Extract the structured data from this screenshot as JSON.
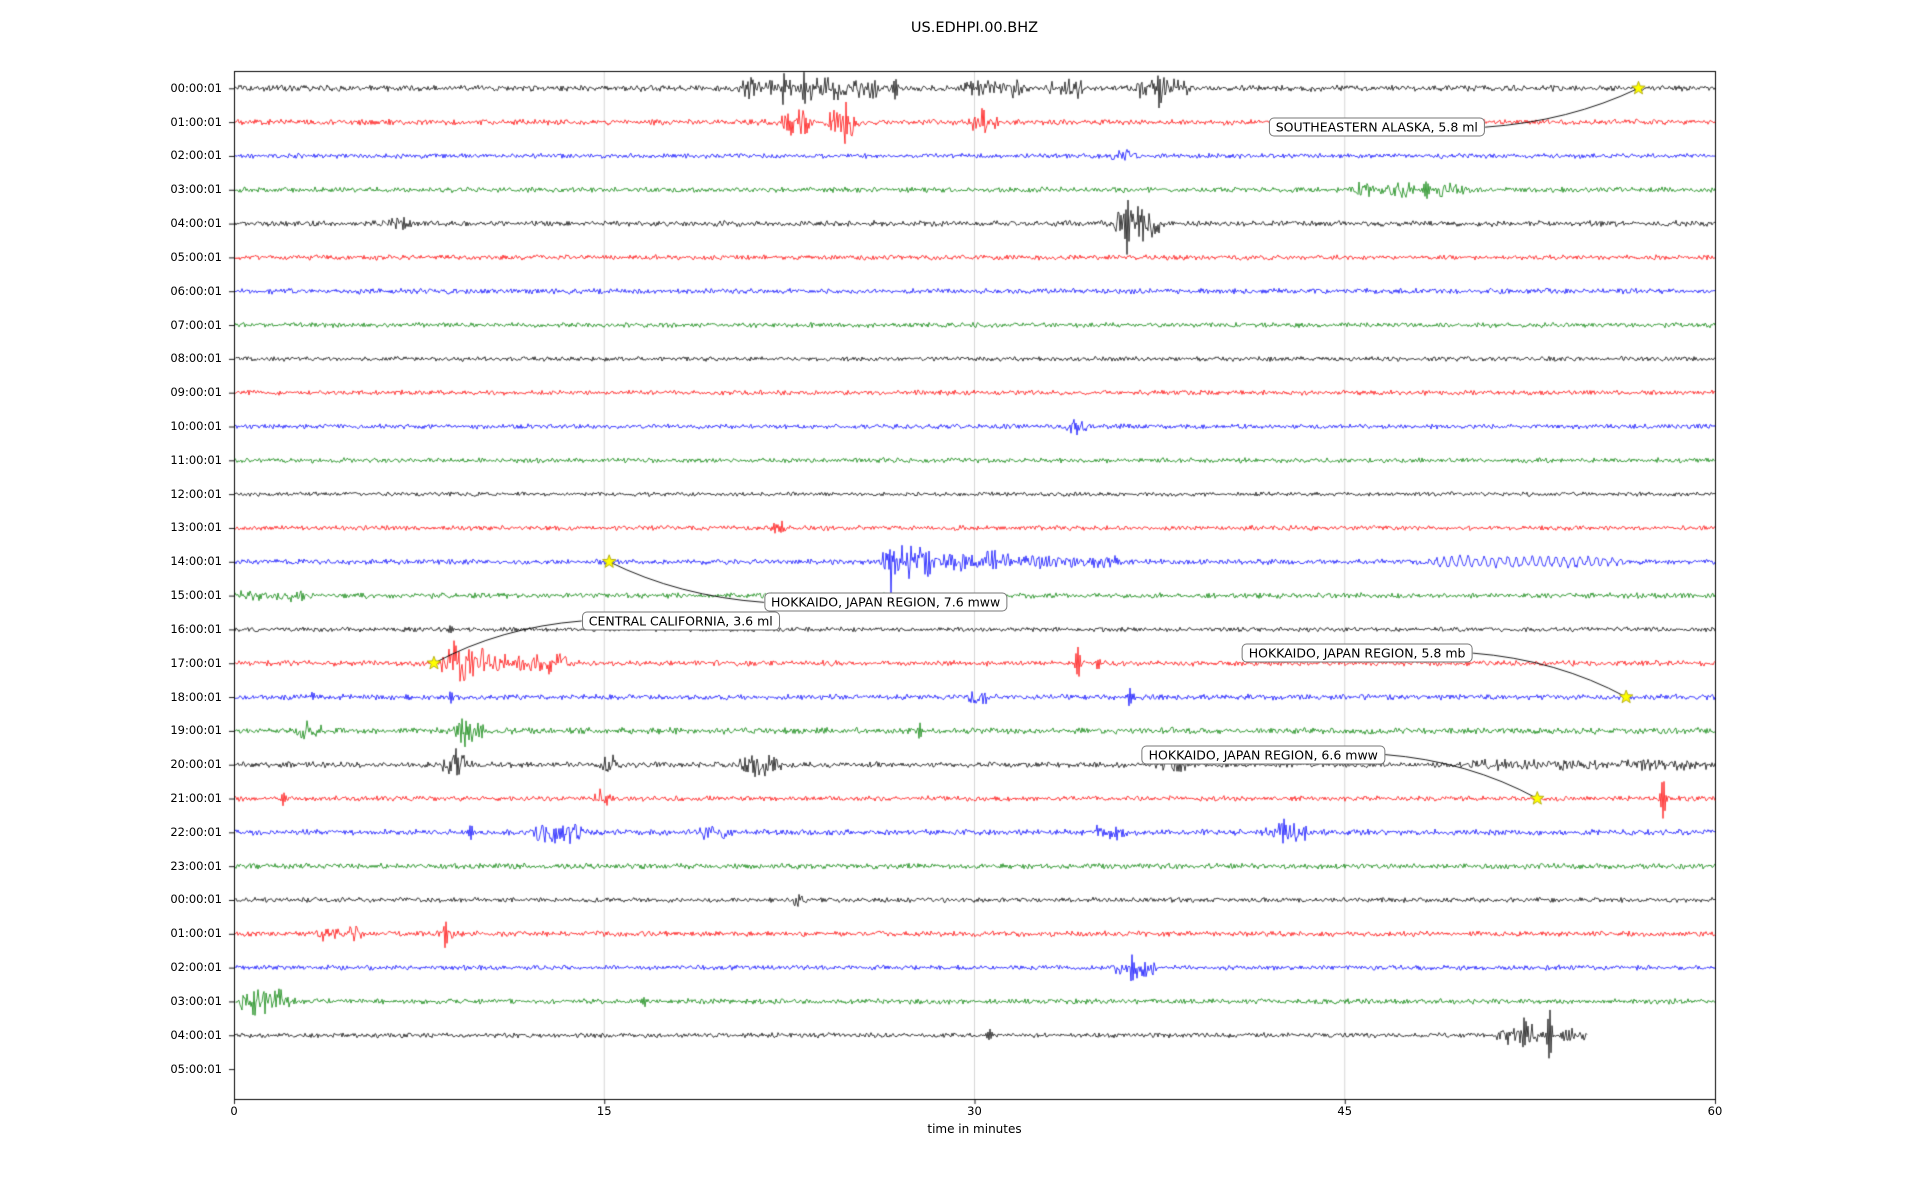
{
  "chart_data": {
    "type": "line",
    "title": "US.EDHPI.00.BHZ",
    "xlabel": "time in minutes",
    "x_range": [
      0,
      60
    ],
    "x_ticks": [
      0,
      15,
      30,
      45,
      60
    ],
    "grid_minutes": [
      15,
      30,
      45
    ],
    "trace_colors_cycle": [
      "#000000",
      "#ff0000",
      "#0000ff",
      "#008000"
    ],
    "marker_color": "#ffff00",
    "rows": [
      {
        "label": "00:00:01",
        "color": "#000000",
        "noise": 2.4,
        "features": [
          {
            "type": "burst",
            "start": 20.5,
            "end": 26.2,
            "amp": 6
          },
          {
            "type": "spike",
            "minute": 22.3,
            "amp": 12
          },
          {
            "type": "spike",
            "minute": 23.1,
            "amp": 10
          },
          {
            "type": "spike",
            "minute": 26.8,
            "amp": 11
          },
          {
            "type": "burst",
            "start": 29.5,
            "end": 32.0,
            "amp": 5
          },
          {
            "type": "burst",
            "start": 33.0,
            "end": 34.5,
            "amp": 5
          },
          {
            "type": "burst",
            "start": 36.5,
            "end": 38.8,
            "amp": 6
          },
          {
            "type": "spike",
            "minute": 37.5,
            "amp": 10
          }
        ]
      },
      {
        "label": "01:00:01",
        "color": "#ff0000",
        "noise": 2.2,
        "features": [
          {
            "type": "burst",
            "start": 22.0,
            "end": 23.5,
            "amp": 12
          },
          {
            "type": "spike",
            "minute": 22.6,
            "amp": 17
          },
          {
            "type": "spike",
            "minute": 23.2,
            "amp": 16
          },
          {
            "type": "burst",
            "start": 24.0,
            "end": 25.3,
            "amp": 10
          },
          {
            "type": "spike",
            "minute": 24.8,
            "amp": 15
          },
          {
            "type": "burst",
            "start": 29.8,
            "end": 31.0,
            "amp": 6
          },
          {
            "type": "spike",
            "minute": 30.3,
            "amp": 9
          }
        ]
      },
      {
        "label": "02:00:01",
        "color": "#0000ff",
        "noise": 1.9,
        "features": [
          {
            "type": "burst",
            "start": 35.5,
            "end": 36.5,
            "amp": 3
          }
        ]
      },
      {
        "label": "03:00:01",
        "color": "#008000",
        "noise": 2.1,
        "features": [
          {
            "type": "burst",
            "start": 45.3,
            "end": 47.8,
            "amp": 5
          },
          {
            "type": "spike",
            "minute": 48.3,
            "amp": 9
          },
          {
            "type": "burst",
            "start": 48.6,
            "end": 50.0,
            "amp": 4
          }
        ]
      },
      {
        "label": "04:00:01",
        "color": "#000000",
        "noise": 2.2,
        "features": [
          {
            "type": "burst",
            "start": 6.3,
            "end": 7.2,
            "amp": 4
          },
          {
            "type": "burst",
            "start": 35.6,
            "end": 37.6,
            "amp": 10
          },
          {
            "type": "spike",
            "minute": 36.2,
            "amp": 16
          },
          {
            "type": "spike",
            "minute": 36.8,
            "amp": 14
          }
        ]
      },
      {
        "label": "05:00:01",
        "color": "#ff0000",
        "noise": 1.9,
        "features": []
      },
      {
        "label": "06:00:01",
        "color": "#0000ff",
        "noise": 2.1,
        "features": []
      },
      {
        "label": "07:00:01",
        "color": "#008000",
        "noise": 1.9,
        "features": []
      },
      {
        "label": "08:00:01",
        "color": "#000000",
        "noise": 1.8,
        "features": []
      },
      {
        "label": "09:00:01",
        "color": "#ff0000",
        "noise": 1.9,
        "features": []
      },
      {
        "label": "10:00:01",
        "color": "#0000ff",
        "noise": 1.9,
        "features": [
          {
            "type": "burst",
            "start": 33.7,
            "end": 34.6,
            "amp": 5
          },
          {
            "type": "spike",
            "minute": 34.1,
            "amp": 6
          }
        ]
      },
      {
        "label": "11:00:01",
        "color": "#008000",
        "noise": 1.9,
        "features": []
      },
      {
        "label": "12:00:01",
        "color": "#000000",
        "noise": 1.6,
        "features": []
      },
      {
        "label": "13:00:01",
        "color": "#ff0000",
        "noise": 1.9,
        "features": [
          {
            "type": "spike",
            "minute": 21.9,
            "amp": 6
          },
          {
            "type": "spike",
            "minute": 22.2,
            "amp": 5
          }
        ]
      },
      {
        "label": "14:00:01",
        "color": "#0000ff",
        "noise": 2.1,
        "features": [
          {
            "type": "spike",
            "minute": 26.6,
            "amp": 27
          },
          {
            "type": "burst",
            "start": 26.2,
            "end": 28.6,
            "amp": 14
          },
          {
            "type": "burst",
            "start": 28.6,
            "end": 31.5,
            "amp": 6
          },
          {
            "type": "burst",
            "start": 31.5,
            "end": 36.0,
            "amp": 3
          },
          {
            "type": "ring",
            "start": 48.3,
            "end": 57.2,
            "amp": 4.5,
            "period": 8
          }
        ]
      },
      {
        "label": "15:00:01",
        "color": "#008000",
        "noise": 2.1,
        "features": [
          {
            "type": "burst",
            "start": 0.0,
            "end": 3.0,
            "amp": 2.5
          }
        ]
      },
      {
        "label": "16:00:01",
        "color": "#000000",
        "noise": 1.8,
        "features": [
          {
            "type": "spike",
            "minute": 8.8,
            "amp": 4
          }
        ]
      },
      {
        "label": "17:00:01",
        "color": "#ff0000",
        "noise": 2.2,
        "features": [
          {
            "type": "burst",
            "start": 8.4,
            "end": 10.3,
            "amp": 15
          },
          {
            "type": "spike",
            "minute": 8.9,
            "amp": 19
          },
          {
            "type": "burst",
            "start": 10.3,
            "end": 13.6,
            "amp": 5
          },
          {
            "type": "spike",
            "minute": 12.8,
            "amp": 9
          },
          {
            "type": "spike",
            "minute": 34.2,
            "amp": 15
          },
          {
            "type": "spike",
            "minute": 35.0,
            "amp": 5
          }
        ]
      },
      {
        "label": "18:00:01",
        "color": "#0000ff",
        "noise": 2.2,
        "features": [
          {
            "type": "spike",
            "minute": 3.2,
            "amp": 5
          },
          {
            "type": "spike",
            "minute": 8.8,
            "amp": 6
          },
          {
            "type": "burst",
            "start": 29.7,
            "end": 30.6,
            "amp": 5
          },
          {
            "type": "spike",
            "minute": 36.3,
            "amp": 9
          }
        ]
      },
      {
        "label": "19:00:01",
        "color": "#008000",
        "noise": 2.5,
        "features": [
          {
            "type": "burst",
            "start": 2.4,
            "end": 3.6,
            "amp": 5
          },
          {
            "type": "burst",
            "start": 8.9,
            "end": 10.2,
            "amp": 6
          },
          {
            "type": "spike",
            "minute": 9.4,
            "amp": 9
          },
          {
            "type": "spike",
            "minute": 27.8,
            "amp": 7
          }
        ]
      },
      {
        "label": "20:00:01",
        "color": "#000000",
        "noise": 2.2,
        "features": [
          {
            "type": "burst",
            "start": 8.4,
            "end": 9.6,
            "amp": 7
          },
          {
            "type": "spike",
            "minute": 9.0,
            "amp": 11
          },
          {
            "type": "burst",
            "start": 14.7,
            "end": 15.6,
            "amp": 5
          },
          {
            "type": "burst",
            "start": 20.4,
            "end": 22.2,
            "amp": 6
          },
          {
            "type": "spike",
            "minute": 21.0,
            "amp": 9
          },
          {
            "type": "burst",
            "start": 37.4,
            "end": 38.6,
            "amp": 4
          },
          {
            "type": "burst",
            "start": 50.0,
            "end": 60.0,
            "amp": 2
          }
        ]
      },
      {
        "label": "21:00:01",
        "color": "#ff0000",
        "noise": 2.0,
        "features": [
          {
            "type": "spike",
            "minute": 2.0,
            "amp": 6
          },
          {
            "type": "burst",
            "start": 14.6,
            "end": 15.4,
            "amp": 5
          },
          {
            "type": "spike",
            "minute": 57.9,
            "amp": 21
          }
        ]
      },
      {
        "label": "22:00:01",
        "color": "#0000ff",
        "noise": 2.3,
        "features": [
          {
            "type": "spike",
            "minute": 9.6,
            "amp": 9
          },
          {
            "type": "burst",
            "start": 12.0,
            "end": 14.2,
            "amp": 6
          },
          {
            "type": "burst",
            "start": 18.8,
            "end": 20.2,
            "amp": 4
          },
          {
            "type": "burst",
            "start": 34.8,
            "end": 36.2,
            "amp": 4
          },
          {
            "type": "burst",
            "start": 41.8,
            "end": 43.6,
            "amp": 6
          },
          {
            "type": "spike",
            "minute": 42.6,
            "amp": 8
          }
        ]
      },
      {
        "label": "23:00:01",
        "color": "#008000",
        "noise": 2.1,
        "features": []
      },
      {
        "label": "00:00:01",
        "color": "#000000",
        "noise": 1.9,
        "features": [
          {
            "type": "burst",
            "start": 22.4,
            "end": 23.2,
            "amp": 3
          }
        ]
      },
      {
        "label": "01:00:01",
        "color": "#ff0000",
        "noise": 2.1,
        "features": [
          {
            "type": "burst",
            "start": 3.4,
            "end": 5.2,
            "amp": 4
          },
          {
            "type": "spike",
            "minute": 8.6,
            "amp": 12
          },
          {
            "type": "burst",
            "start": 8.2,
            "end": 9.0,
            "amp": 5
          }
        ]
      },
      {
        "label": "02:00:01",
        "color": "#0000ff",
        "noise": 1.9,
        "features": [
          {
            "type": "burst",
            "start": 35.6,
            "end": 37.4,
            "amp": 6
          },
          {
            "type": "spike",
            "minute": 36.4,
            "amp": 8
          }
        ]
      },
      {
        "label": "03:00:01",
        "color": "#008000",
        "noise": 2.1,
        "features": [
          {
            "type": "burst",
            "start": 0.2,
            "end": 2.4,
            "amp": 7
          },
          {
            "type": "spike",
            "minute": 0.8,
            "amp": 10
          },
          {
            "type": "spike",
            "minute": 16.6,
            "amp": 5
          }
        ]
      },
      {
        "label": "04:00:01",
        "color": "#000000",
        "noise": 1.9,
        "end_minute": 54.8,
        "features": [
          {
            "type": "spike",
            "minute": 30.6,
            "amp": 6
          },
          {
            "type": "burst",
            "start": 51.0,
            "end": 53.0,
            "amp": 6
          },
          {
            "type": "spike",
            "minute": 52.3,
            "amp": 10
          },
          {
            "type": "spike",
            "minute": 53.3,
            "amp": 25
          },
          {
            "type": "burst",
            "start": 53.5,
            "end": 54.8,
            "amp": 5
          }
        ]
      },
      {
        "label": "05:00:01",
        "color": "#ff0000",
        "noise": 0,
        "no_trace": true,
        "features": []
      }
    ],
    "events": [
      {
        "label": "SOUTHEASTERN ALASKA, 5.8 ml",
        "star_row": 0,
        "star_minute": 56.9,
        "box_row": 1.15,
        "box_minute": 46.3,
        "anchor": "right"
      },
      {
        "label": "HOKKAIDO, JAPAN REGION, 7.6 mww",
        "star_row": 14,
        "star_minute": 15.2,
        "box_row": 15.2,
        "box_minute": 26.4,
        "anchor": "left"
      },
      {
        "label": "CENTRAL CALIFORNIA, 3.6 ml",
        "star_row": 17,
        "star_minute": 8.1,
        "box_row": 15.75,
        "box_minute": 18.1,
        "anchor": "left"
      },
      {
        "label": "HOKKAIDO, JAPAN REGION, 5.8 mb",
        "star_row": 18,
        "star_minute": 56.4,
        "box_row": 16.7,
        "box_minute": 45.5,
        "anchor": "right"
      },
      {
        "label": "HOKKAIDO, JAPAN REGION, 6.6 mww",
        "star_row": 21,
        "star_minute": 52.8,
        "box_row": 19.7,
        "box_minute": 41.7,
        "anchor": "right"
      }
    ]
  }
}
